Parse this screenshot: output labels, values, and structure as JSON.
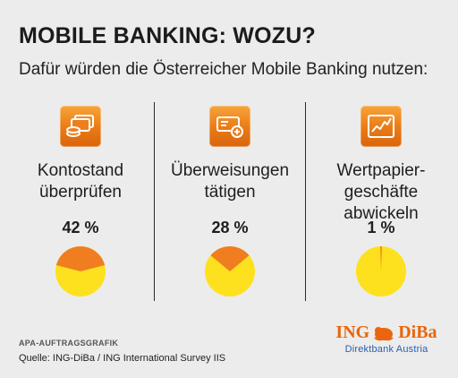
{
  "title": "MOBILE BANKING: WOZU?",
  "subtitle": "Dafür würden die Österreicher Mobile Banking nutzen:",
  "colors": {
    "accent_orange": "#ea7a16",
    "pie_orange": "#f07d20",
    "pie_yellow": "#fde11e",
    "logo_orange": "#ea650d",
    "logo_blue": "#2a5fb0"
  },
  "chart_data": {
    "type": "pie",
    "categories": [
      "Kontostand überprüfen",
      "Überweisungen tätigen",
      "Wertpapiergeschäfte abwickeln"
    ],
    "values": [
      42,
      28,
      1
    ],
    "unit": "%",
    "value_labels": [
      "42 %",
      "28 %",
      "1 %"
    ],
    "icons": [
      "cards-coins-icon",
      "bank-transfer-icon",
      "stock-chart-icon"
    ]
  },
  "items": [
    {
      "label_lines": [
        "Kontostand",
        "überprüfen"
      ],
      "value_label": "42 %"
    },
    {
      "label_lines": [
        "Überweisungen",
        "tätigen"
      ],
      "value_label": "28 %"
    },
    {
      "label_lines": [
        "Wertpapier-",
        "geschäfte",
        "abwickeln"
      ],
      "value_label": "1 %"
    }
  ],
  "footer": {
    "credit": "APA-AUFTRAGSGRAFIK",
    "source": "Quelle: ING-DiBa / ING International Survey IIS"
  },
  "logo": {
    "left_word": "ING",
    "right_word": "DiBa",
    "tagline": "Direktbank Austria"
  }
}
